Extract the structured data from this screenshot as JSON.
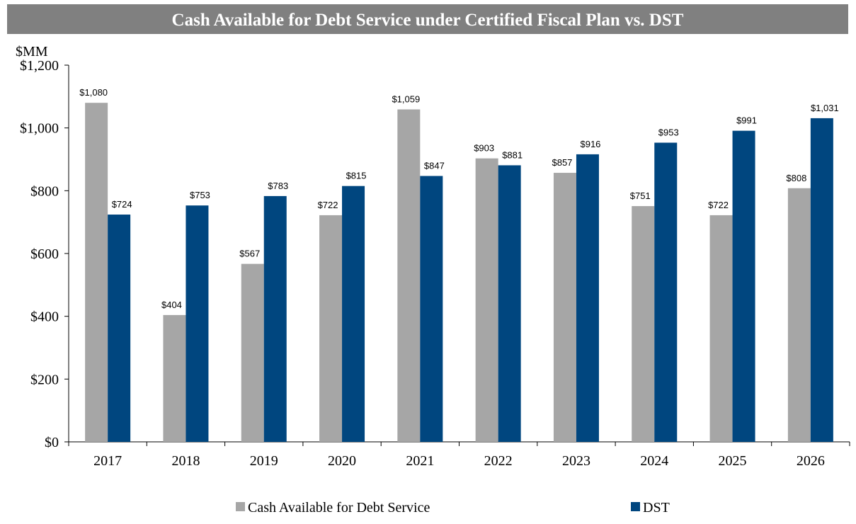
{
  "chart_data": {
    "type": "bar",
    "title": "Cash Available for Debt Service under Certified Fiscal Plan vs. DST",
    "unit_label": "$MM",
    "categories": [
      "2017",
      "2018",
      "2019",
      "2020",
      "2021",
      "2022",
      "2023",
      "2024",
      "2025",
      "2026"
    ],
    "series": [
      {
        "name": "Cash Available for Debt Service",
        "color": "#a6a6a6",
        "values": [
          1080,
          404,
          567,
          722,
          1059,
          903,
          857,
          751,
          722,
          808
        ],
        "labels": [
          "$1,080",
          "$404",
          "$567",
          "$722",
          "$1,059",
          "$903",
          "$857",
          "$751",
          "$722",
          "$808"
        ]
      },
      {
        "name": "DST",
        "color": "#00467f",
        "values": [
          724,
          753,
          783,
          815,
          847,
          881,
          916,
          953,
          991,
          1031
        ],
        "labels": [
          "$724",
          "$753",
          "$783",
          "$815",
          "$847",
          "$881",
          "$916",
          "$953",
          "$991",
          "$1,031"
        ]
      }
    ],
    "y_ticks": [
      {
        "value": 0,
        "label": "$0"
      },
      {
        "value": 200,
        "label": "$200"
      },
      {
        "value": 400,
        "label": "$400"
      },
      {
        "value": 600,
        "label": "$600"
      },
      {
        "value": 800,
        "label": "$800"
      },
      {
        "value": 1000,
        "label": "$1,000"
      },
      {
        "value": 1200,
        "label": "$1,200"
      }
    ],
    "ylim": [
      0,
      1200
    ],
    "grid": false,
    "legend_position": "bottom",
    "title_bar_color": "#808080"
  }
}
